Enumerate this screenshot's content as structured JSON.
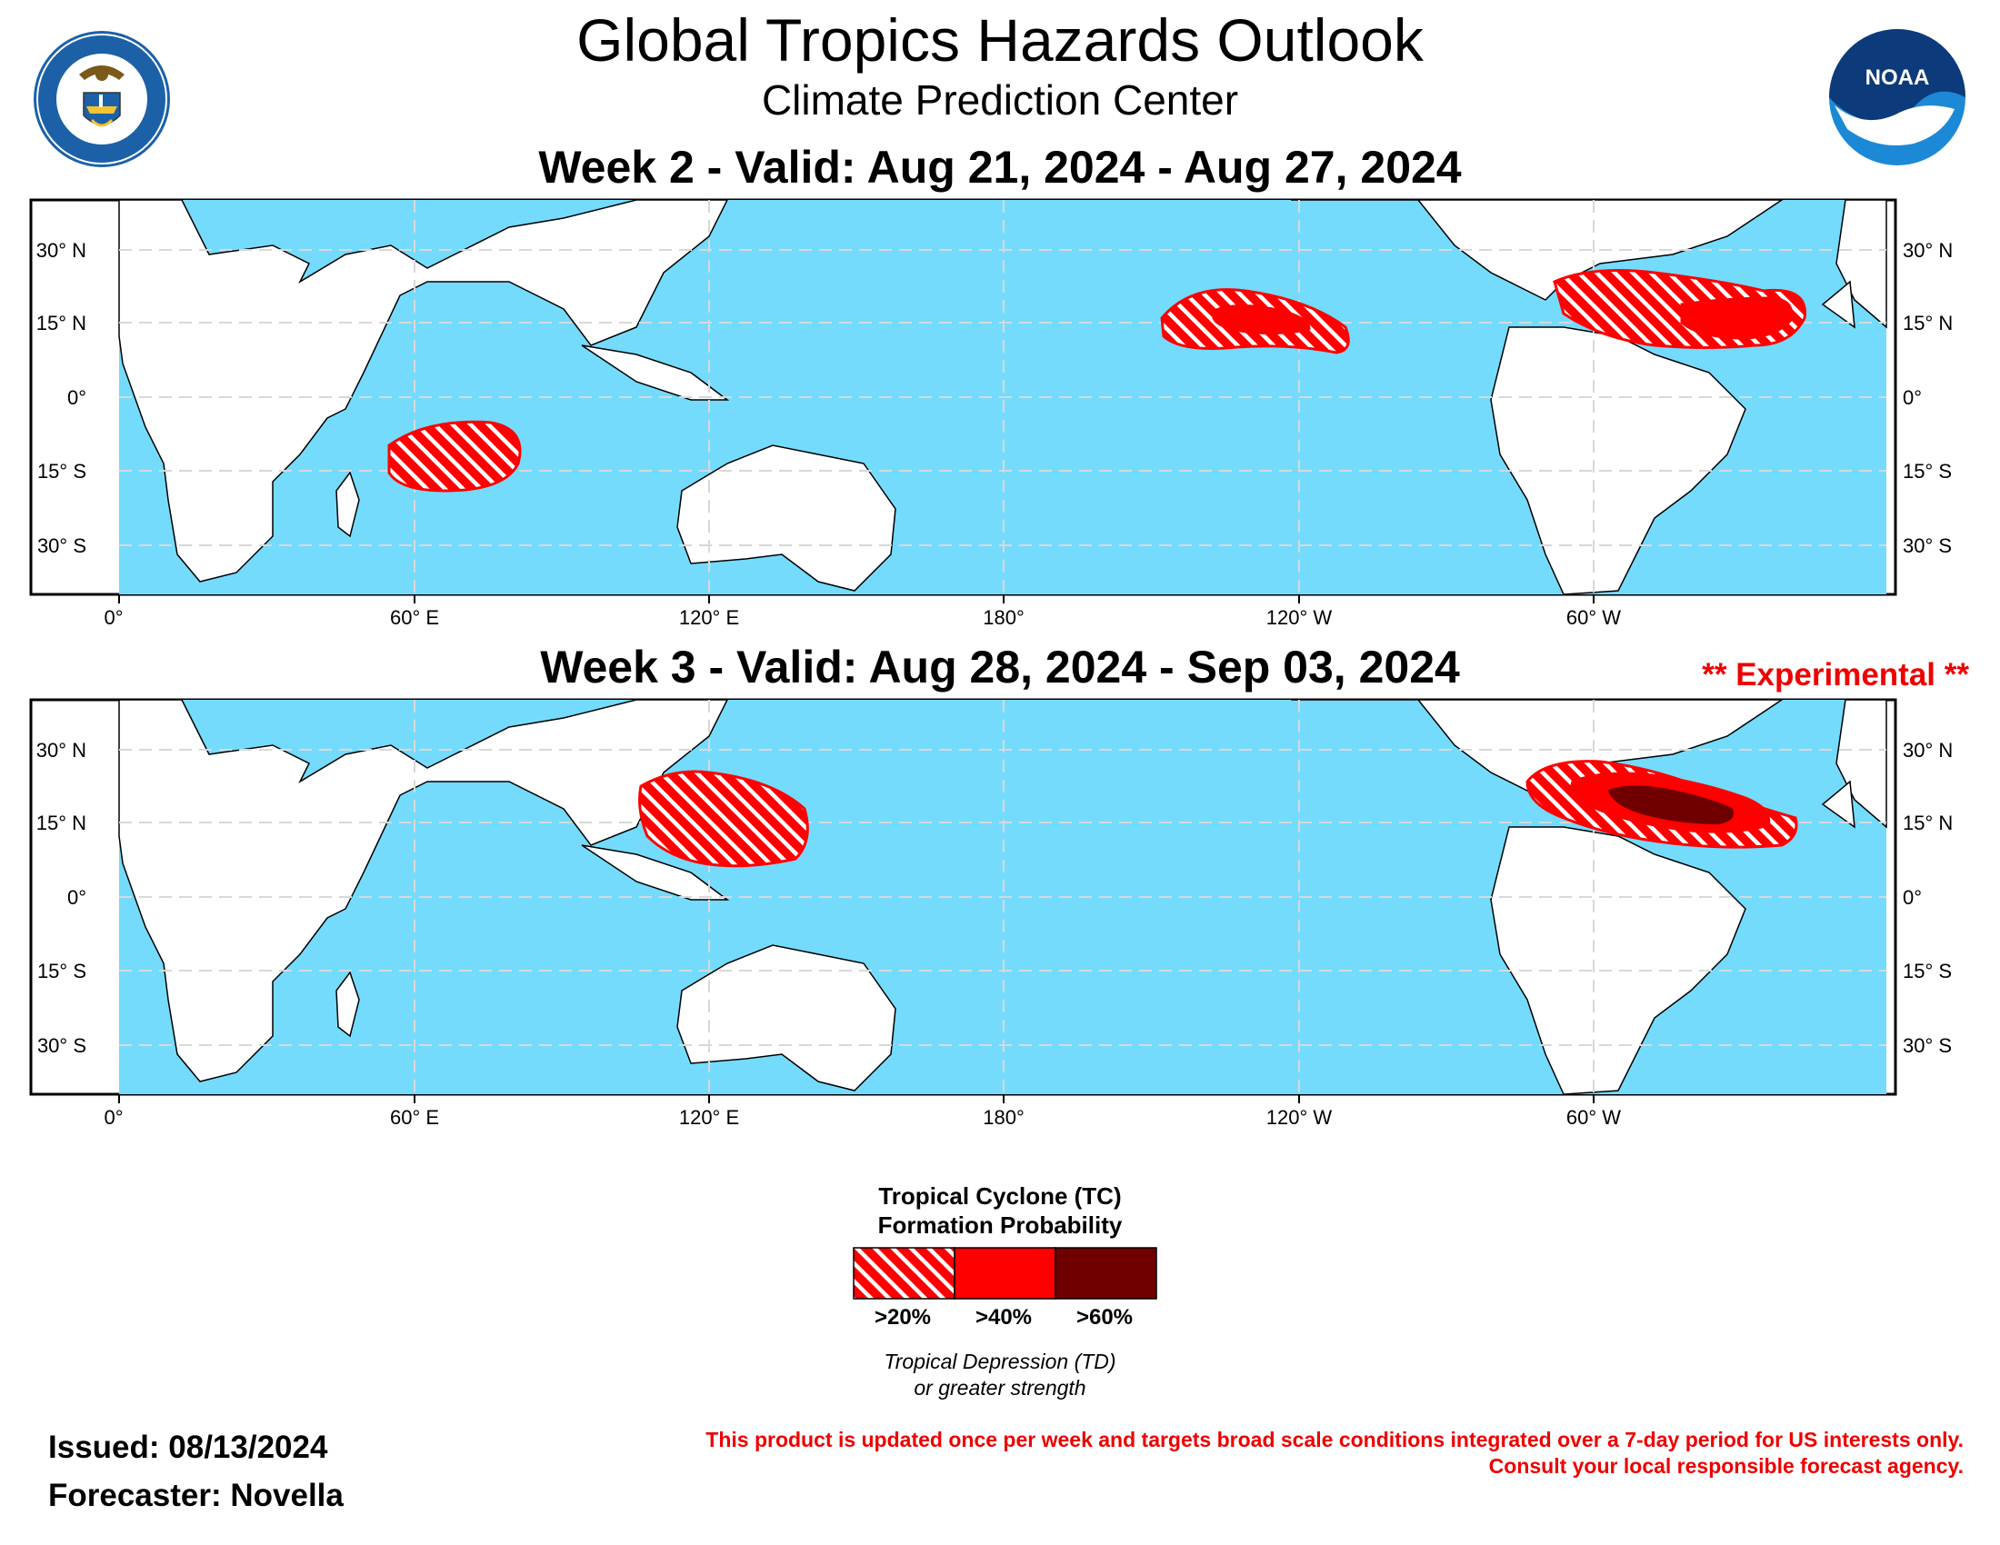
{
  "header": {
    "title": "Global Tropics Hazards Outlook",
    "subtitle": "Climate Prediction Center",
    "left_logo_text_top": "DEPARTMENT OF COMMERCE",
    "left_logo_text_bottom": "UNITED STATES OF AMERICA",
    "right_logo_text": "NOAA"
  },
  "maps": [
    {
      "title": "Week 2 - Valid: Aug 21, 2024 - Aug 27, 2024",
      "tag": ""
    },
    {
      "title": "Week 3 - Valid: Aug 28, 2024 - Sep 03, 2024",
      "tag": "** Experimental **"
    }
  ],
  "axes": {
    "lat_labels_left": [
      "30° N",
      "15° N",
      "0°",
      "15° S",
      "30° S"
    ],
    "lat_labels_right": [
      "30° N",
      "15° N",
      "0°",
      "15° S",
      "30° S"
    ],
    "lon_labels": [
      "0°",
      "60° E",
      "120° E",
      "180°",
      "120° W",
      "60° W"
    ],
    "lat_range": [
      -40,
      40
    ],
    "lon_range": [
      -18,
      362
    ]
  },
  "hazards": {
    "week2": [
      {
        "region": "South Indian Ocean",
        "category": ">20%"
      },
      {
        "region": "East Pacific",
        "category": ">20%",
        "inner": ">40%"
      },
      {
        "region": "Atlantic MDR",
        "category": ">20%",
        "inner": ">40%"
      }
    ],
    "week3": [
      {
        "region": "Philippine Sea",
        "category": ">20%"
      },
      {
        "region": "Atlantic MDR",
        "category": ">20%",
        "inner": ">40%",
        "core": ">60%"
      }
    ]
  },
  "legend": {
    "title_line1": "Tropical Cyclone (TC)",
    "title_line2": "Formation Probability",
    "items": [
      {
        "label": ">20%",
        "style": "hatched",
        "color": "#ff0000"
      },
      {
        "label": ">40%",
        "style": "solid",
        "color": "#ff0000"
      },
      {
        "label": ">60%",
        "style": "solid",
        "color": "#700000"
      }
    ],
    "note_line1": "Tropical Depression (TD)",
    "note_line2": "or greater strength"
  },
  "footer": {
    "issued": "Issued: 08/13/2024",
    "forecaster": "Forecaster: Novella",
    "disclaimer_line1": "This product is updated once per week and targets broad scale conditions integrated over a 7-day period for US interests only.",
    "disclaimer_line2": "Consult your local responsible forecast agency."
  },
  "colors": {
    "ocean": "#74dbfd",
    "land": "#ffffff",
    "hazard_red": "#ff0000",
    "hazard_dark": "#700000",
    "text_red": "#ee0000"
  }
}
